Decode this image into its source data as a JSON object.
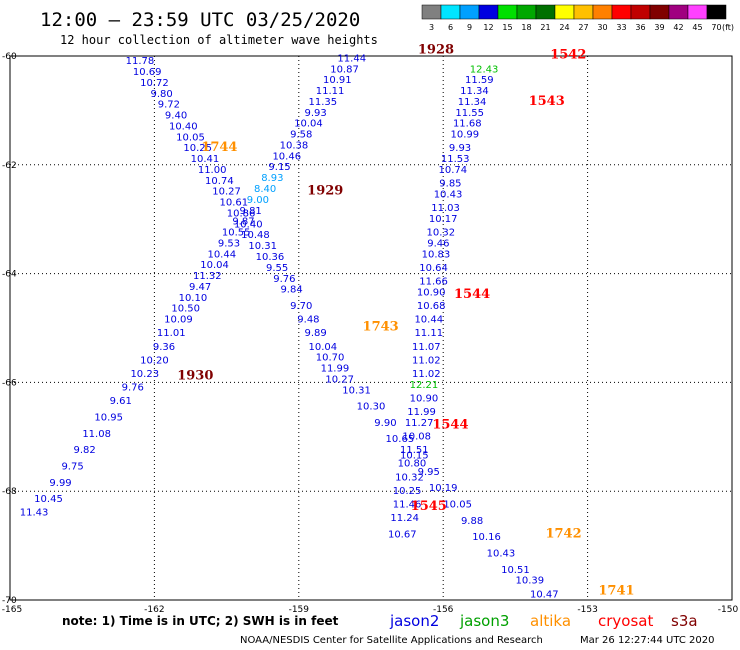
{
  "title": "12:00 – 23:59 UTC 03/25/2020",
  "subtitle": "12 hour collection of altimeter wave heights",
  "legend": {
    "unit": "(ft)",
    "bins": [
      {
        "label": "3",
        "color": "#808080"
      },
      {
        "label": "6",
        "color": "#00e5ff"
      },
      {
        "label": "9",
        "color": "#00a0ff"
      },
      {
        "label": "12",
        "color": "#0000e0"
      },
      {
        "label": "15",
        "color": "#00e000"
      },
      {
        "label": "18",
        "color": "#00a800"
      },
      {
        "label": "21",
        "color": "#007000"
      },
      {
        "label": "24",
        "color": "#ffff00"
      },
      {
        "label": "27",
        "color": "#ffc000"
      },
      {
        "label": "30",
        "color": "#ff8000"
      },
      {
        "label": "33",
        "color": "#ff0000"
      },
      {
        "label": "36",
        "color": "#c00000"
      },
      {
        "label": "39",
        "color": "#800000"
      },
      {
        "label": "42",
        "color": "#a00080"
      },
      {
        "label": "45",
        "color": "#ff40ff"
      },
      {
        "label": "70",
        "color": "#000000"
      }
    ]
  },
  "note": "note: 1) Time is in UTC; 2) SWH is in feet",
  "satellites": [
    {
      "name": "jason2",
      "color": "#0000e0"
    },
    {
      "name": "jason3",
      "color": "#00a000"
    },
    {
      "name": "altika",
      "color": "#ff9000"
    },
    {
      "name": "cryosat",
      "color": "#ff0000"
    },
    {
      "name": "s3a",
      "color": "#800000"
    }
  ],
  "credit": "NOAA/NESDIS Center for Satellite Applications and Research",
  "timestamp": "Mar 26 12:27:44 UTC 2020",
  "chart_data": {
    "type": "scatter",
    "title": "12:00 – 23:59 UTC 03/25/2020",
    "subtitle": "12 hour collection of altimeter wave heights",
    "xlim": [
      -165,
      -150
    ],
    "ylim": [
      -70,
      -60
    ],
    "x_ticks": [
      {
        "v": -165,
        "label": "-165"
      },
      {
        "v": -162,
        "label": "-162"
      },
      {
        "v": -159,
        "label": "-159"
      },
      {
        "v": -156,
        "label": "-156"
      },
      {
        "v": -153,
        "label": "-153"
      },
      {
        "v": -150,
        "label": "-150"
      }
    ],
    "y_ticks": [
      {
        "v": -60,
        "label": "-60"
      },
      {
        "v": -62,
        "label": "-62"
      },
      {
        "v": -64,
        "label": "-64"
      },
      {
        "v": -66,
        "label": "-66"
      },
      {
        "v": -68,
        "label": "-68"
      },
      {
        "v": -70,
        "label": "-70"
      }
    ],
    "grid": true,
    "points": [
      {
        "x": -162.3,
        "y": -60.15,
        "label": "11.78",
        "color": "#0000e0"
      },
      {
        "x": -162.15,
        "y": -60.35,
        "label": "10.69",
        "color": "#0000e0"
      },
      {
        "x": -162.0,
        "y": -60.55,
        "label": "10.72",
        "color": "#0000e0"
      },
      {
        "x": -161.85,
        "y": -60.75,
        "label": "9.80",
        "color": "#0000e0"
      },
      {
        "x": -161.7,
        "y": -60.95,
        "label": "9.72",
        "color": "#0000e0"
      },
      {
        "x": -161.55,
        "y": -61.15,
        "label": "9.40",
        "color": "#0000e0"
      },
      {
        "x": -161.4,
        "y": -61.35,
        "label": "10.40",
        "color": "#0000e0"
      },
      {
        "x": -161.25,
        "y": -61.55,
        "label": "10.05",
        "color": "#0000e0"
      },
      {
        "x": -161.1,
        "y": -61.75,
        "label": "10.25",
        "color": "#0000e0"
      },
      {
        "x": -160.95,
        "y": -61.95,
        "label": "10.41",
        "color": "#0000e0"
      },
      {
        "x": -160.8,
        "y": -62.15,
        "label": "11.00",
        "color": "#0000e0"
      },
      {
        "x": -160.65,
        "y": -62.35,
        "label": "10.74",
        "color": "#0000e0"
      },
      {
        "x": -160.5,
        "y": -62.55,
        "label": "10.27",
        "color": "#0000e0"
      },
      {
        "x": -160.35,
        "y": -62.75,
        "label": "10.61",
        "color": "#0000e0"
      },
      {
        "x": -160.2,
        "y": -62.95,
        "label": "10.86",
        "color": "#0000e0"
      },
      {
        "x": -160.05,
        "y": -63.15,
        "label": "10.40",
        "color": "#0000e0"
      },
      {
        "x": -159.9,
        "y": -63.35,
        "label": "10.48",
        "color": "#0000e0"
      },
      {
        "x": -159.75,
        "y": -63.55,
        "label": "10.31",
        "color": "#0000e0"
      },
      {
        "x": -159.6,
        "y": -63.75,
        "label": "10.36",
        "color": "#0000e0"
      },
      {
        "x": -159.45,
        "y": -63.95,
        "label": "9.55",
        "color": "#0000e0"
      },
      {
        "x": -159.3,
        "y": -64.15,
        "label": "9.76",
        "color": "#0000e0"
      },
      {
        "x": -159.15,
        "y": -64.35,
        "label": "9.84",
        "color": "#0000e0"
      },
      {
        "x": -158.95,
        "y": -64.65,
        "label": "9.70",
        "color": "#0000e0"
      },
      {
        "x": -158.8,
        "y": -64.9,
        "label": "9.48",
        "color": "#0000e0"
      },
      {
        "x": -158.65,
        "y": -65.15,
        "label": "9.89",
        "color": "#0000e0"
      },
      {
        "x": -158.5,
        "y": -65.4,
        "label": "10.04",
        "color": "#0000e0"
      },
      {
        "x": -158.35,
        "y": -65.6,
        "label": "10.70",
        "color": "#0000e0"
      },
      {
        "x": -158.25,
        "y": -65.8,
        "label": "11.99",
        "color": "#0000e0"
      },
      {
        "x": -158.15,
        "y": -66.0,
        "label": "10.27",
        "color": "#0000e0"
      },
      {
        "x": -157.8,
        "y": -66.2,
        "label": "10.31",
        "color": "#0000e0"
      },
      {
        "x": -157.5,
        "y": -66.5,
        "label": "10.30",
        "color": "#0000e0"
      },
      {
        "x": -157.2,
        "y": -66.8,
        "label": "9.90",
        "color": "#0000e0"
      },
      {
        "x": -156.9,
        "y": -67.1,
        "label": "10.65",
        "color": "#0000e0"
      },
      {
        "x": -156.6,
        "y": -67.4,
        "label": "10.15",
        "color": "#0000e0"
      },
      {
        "x": -156.3,
        "y": -67.7,
        "label": "9.95",
        "color": "#0000e0"
      },
      {
        "x": -156.0,
        "y": -68.0,
        "label": "10.19",
        "color": "#0000e0"
      },
      {
        "x": -155.7,
        "y": -68.3,
        "label": "10.05",
        "color": "#0000e0"
      },
      {
        "x": -155.4,
        "y": -68.6,
        "label": "9.88",
        "color": "#0000e0"
      },
      {
        "x": -155.1,
        "y": -68.9,
        "label": "10.16",
        "color": "#0000e0"
      },
      {
        "x": -154.8,
        "y": -69.2,
        "label": "10.43",
        "color": "#0000e0"
      },
      {
        "x": -154.5,
        "y": -69.5,
        "label": "10.51",
        "color": "#0000e0"
      },
      {
        "x": -154.2,
        "y": -69.7,
        "label": "10.39",
        "color": "#0000e0"
      },
      {
        "x": -153.9,
        "y": -69.95,
        "label": "10.47",
        "color": "#0000e0"
      },
      {
        "x": -157.9,
        "y": -60.1,
        "label": "11.44",
        "color": "#0000e0"
      },
      {
        "x": -158.05,
        "y": -60.3,
        "label": "10.87",
        "color": "#0000e0"
      },
      {
        "x": -158.2,
        "y": -60.5,
        "label": "10.91",
        "color": "#0000e0"
      },
      {
        "x": -158.35,
        "y": -60.7,
        "label": "11.11",
        "color": "#0000e0"
      },
      {
        "x": -158.5,
        "y": -60.9,
        "label": "11.35",
        "color": "#0000e0"
      },
      {
        "x": -158.65,
        "y": -61.1,
        "label": "9.93",
        "color": "#0000e0"
      },
      {
        "x": -158.8,
        "y": -61.3,
        "label": "10.04",
        "color": "#0000e0"
      },
      {
        "x": -158.95,
        "y": -61.5,
        "label": "9.58",
        "color": "#0000e0"
      },
      {
        "x": -159.1,
        "y": -61.7,
        "label": "10.38",
        "color": "#0000e0"
      },
      {
        "x": -159.25,
        "y": -61.9,
        "label": "10.46",
        "color": "#0000e0"
      },
      {
        "x": -159.4,
        "y": -62.1,
        "label": "9.15",
        "color": "#0000e0"
      },
      {
        "x": -159.55,
        "y": -62.3,
        "label": "8.93",
        "color": "#00a0ff"
      },
      {
        "x": -159.7,
        "y": -62.5,
        "label": "8.40",
        "color": "#00a0ff"
      },
      {
        "x": -159.85,
        "y": -62.7,
        "label": "9.00",
        "color": "#00a0ff"
      },
      {
        "x": -160.0,
        "y": -62.9,
        "label": "9.81",
        "color": "#0000e0"
      },
      {
        "x": -160.15,
        "y": -63.1,
        "label": "9.87",
        "color": "#0000e0"
      },
      {
        "x": -160.3,
        "y": -63.3,
        "label": "10.55",
        "color": "#0000e0"
      },
      {
        "x": -160.45,
        "y": -63.5,
        "label": "9.53",
        "color": "#0000e0"
      },
      {
        "x": -160.6,
        "y": -63.7,
        "label": "10.44",
        "color": "#0000e0"
      },
      {
        "x": -160.75,
        "y": -63.9,
        "label": "10.04",
        "color": "#0000e0"
      },
      {
        "x": -160.9,
        "y": -64.1,
        "label": "11.32",
        "color": "#0000e0"
      },
      {
        "x": -161.05,
        "y": -64.3,
        "label": "9.47",
        "color": "#0000e0"
      },
      {
        "x": -161.2,
        "y": -64.5,
        "label": "10.10",
        "color": "#0000e0"
      },
      {
        "x": -161.35,
        "y": -64.7,
        "label": "10.50",
        "color": "#0000e0"
      },
      {
        "x": -161.5,
        "y": -64.9,
        "label": "10.09",
        "color": "#0000e0"
      },
      {
        "x": -161.65,
        "y": -65.15,
        "label": "11.01",
        "color": "#0000e0"
      },
      {
        "x": -161.8,
        "y": -65.4,
        "label": "9.36",
        "color": "#0000e0"
      },
      {
        "x": -162.0,
        "y": -65.65,
        "label": "10.20",
        "color": "#0000e0"
      },
      {
        "x": -162.2,
        "y": -65.9,
        "label": "10.23",
        "color": "#0000e0"
      },
      {
        "x": -162.45,
        "y": -66.15,
        "label": "9.76",
        "color": "#0000e0"
      },
      {
        "x": -162.7,
        "y": -66.4,
        "label": "9.61",
        "color": "#0000e0"
      },
      {
        "x": -162.95,
        "y": -66.7,
        "label": "10.95",
        "color": "#0000e0"
      },
      {
        "x": -163.2,
        "y": -67.0,
        "label": "11.08",
        "color": "#0000e0"
      },
      {
        "x": -163.45,
        "y": -67.3,
        "label": "9.82",
        "color": "#0000e0"
      },
      {
        "x": -163.7,
        "y": -67.6,
        "label": "9.75",
        "color": "#0000e0"
      },
      {
        "x": -163.95,
        "y": -67.9,
        "label": "9.99",
        "color": "#0000e0"
      },
      {
        "x": -164.2,
        "y": -68.2,
        "label": "10.45",
        "color": "#0000e0"
      },
      {
        "x": -164.5,
        "y": -68.45,
        "label": "11.43",
        "color": "#0000e0"
      },
      {
        "x": -155.15,
        "y": -60.3,
        "label": "12.43",
        "color": "#00c000"
      },
      {
        "x": -155.25,
        "y": -60.5,
        "label": "11.59",
        "color": "#0000e0"
      },
      {
        "x": -155.35,
        "y": -60.7,
        "label": "11.34",
        "color": "#0000e0"
      },
      {
        "x": -155.4,
        "y": -60.9,
        "label": "11.34",
        "color": "#0000e0"
      },
      {
        "x": -155.45,
        "y": -61.1,
        "label": "11.55",
        "color": "#0000e0"
      },
      {
        "x": -155.5,
        "y": -61.3,
        "label": "11.68",
        "color": "#0000e0"
      },
      {
        "x": -155.55,
        "y": -61.5,
        "label": "10.99",
        "color": "#0000e0"
      },
      {
        "x": -155.65,
        "y": -61.75,
        "label": "9.93",
        "color": "#0000e0"
      },
      {
        "x": -155.75,
        "y": -61.95,
        "label": "11.53",
        "color": "#0000e0"
      },
      {
        "x": -155.8,
        "y": -62.15,
        "label": "10.74",
        "color": "#0000e0"
      },
      {
        "x": -155.85,
        "y": -62.4,
        "label": "9.85",
        "color": "#0000e0"
      },
      {
        "x": -155.9,
        "y": -62.6,
        "label": "10.43",
        "color": "#0000e0"
      },
      {
        "x": -155.95,
        "y": -62.85,
        "label": "11.03",
        "color": "#0000e0"
      },
      {
        "x": -156.0,
        "y": -63.05,
        "label": "10.17",
        "color": "#0000e0"
      },
      {
        "x": -156.05,
        "y": -63.3,
        "label": "10.32",
        "color": "#0000e0"
      },
      {
        "x": -156.1,
        "y": -63.5,
        "label": "9.46",
        "color": "#0000e0"
      },
      {
        "x": -156.15,
        "y": -63.7,
        "label": "10.83",
        "color": "#0000e0"
      },
      {
        "x": -156.2,
        "y": -63.95,
        "label": "10.64",
        "color": "#0000e0"
      },
      {
        "x": -156.2,
        "y": -64.2,
        "label": "11.66",
        "color": "#0000e0"
      },
      {
        "x": -156.25,
        "y": -64.4,
        "label": "10.90",
        "color": "#0000e0"
      },
      {
        "x": -156.25,
        "y": -64.65,
        "label": "10.68",
        "color": "#0000e0"
      },
      {
        "x": -156.3,
        "y": -64.9,
        "label": "10.44",
        "color": "#0000e0"
      },
      {
        "x": -156.3,
        "y": -65.15,
        "label": "11.11",
        "color": "#0000e0"
      },
      {
        "x": -156.35,
        "y": -65.4,
        "label": "11.07",
        "color": "#0000e0"
      },
      {
        "x": -156.35,
        "y": -65.65,
        "label": "11.02",
        "color": "#0000e0"
      },
      {
        "x": -156.35,
        "y": -65.9,
        "label": "11.02",
        "color": "#0000e0"
      },
      {
        "x": -156.4,
        "y": -66.1,
        "label": "12.21",
        "color": "#00c000"
      },
      {
        "x": -156.4,
        "y": -66.35,
        "label": "10.90",
        "color": "#0000e0"
      },
      {
        "x": -156.45,
        "y": -66.6,
        "label": "11.99",
        "color": "#0000e0"
      },
      {
        "x": -156.5,
        "y": -66.8,
        "label": "11.27",
        "color": "#0000e0"
      },
      {
        "x": -156.55,
        "y": -67.05,
        "label": "10.08",
        "color": "#0000e0"
      },
      {
        "x": -156.6,
        "y": -67.3,
        "label": "11.51",
        "color": "#0000e0"
      },
      {
        "x": -156.65,
        "y": -67.55,
        "label": "10.80",
        "color": "#0000e0"
      },
      {
        "x": -156.7,
        "y": -67.8,
        "label": "10.32",
        "color": "#0000e0"
      },
      {
        "x": -156.75,
        "y": -68.05,
        "label": "10.25",
        "color": "#0000e0"
      },
      {
        "x": -156.75,
        "y": -68.3,
        "label": "11.46",
        "color": "#0000e0"
      },
      {
        "x": -156.8,
        "y": -68.55,
        "label": "11.24",
        "color": "#0000e0"
      },
      {
        "x": -156.85,
        "y": -68.85,
        "label": "10.67",
        "color": "#0000e0"
      }
    ],
    "time_labels": [
      {
        "x": -156.15,
        "y": -59.95,
        "label": "1928",
        "color": "#800000"
      },
      {
        "x": -153.4,
        "y": -60.05,
        "label": "1542",
        "color": "#ff0000"
      },
      {
        "x": -153.85,
        "y": -60.9,
        "label": "1543",
        "color": "#ff0000"
      },
      {
        "x": -160.65,
        "y": -61.75,
        "label": "1744",
        "color": "#ff9000"
      },
      {
        "x": -158.45,
        "y": -62.55,
        "label": "1929",
        "color": "#800000"
      },
      {
        "x": -155.4,
        "y": -64.45,
        "label": "1544",
        "color": "#ff0000"
      },
      {
        "x": -157.3,
        "y": -65.05,
        "label": "1743",
        "color": "#ff9000"
      },
      {
        "x": -161.15,
        "y": -65.95,
        "label": "1930",
        "color": "#800000"
      },
      {
        "x": -155.85,
        "y": -66.85,
        "label": "1544",
        "color": "#ff0000"
      },
      {
        "x": -156.3,
        "y": -68.35,
        "label": "1545",
        "color": "#ff0000"
      },
      {
        "x": -153.5,
        "y": -68.85,
        "label": "1742",
        "color": "#ff9000"
      },
      {
        "x": -152.4,
        "y": -69.9,
        "label": "1741",
        "color": "#ff9000"
      }
    ]
  }
}
